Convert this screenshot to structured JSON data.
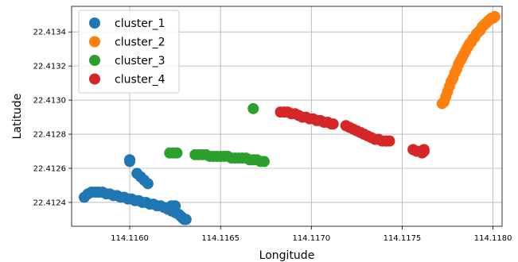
{
  "chart_data": {
    "type": "scatter",
    "title": "",
    "xlabel": "Longitude",
    "ylabel": "Latitude",
    "xlim": [
      114.11568,
      114.11805
    ],
    "ylim": [
      22.41226,
      22.41355
    ],
    "xticks": [
      "114.1160",
      "114.1165",
      "114.1170",
      "114.1175",
      "114.1180"
    ],
    "yticks": [
      "22.4124",
      "22.4126",
      "22.4128",
      "22.4130",
      "22.4132",
      "22.4134"
    ],
    "grid": true,
    "legend_position": "upper-left",
    "series": [
      {
        "name": "cluster_1",
        "color": "#1f77b4",
        "points": [
          [
            114.11575,
            22.41243
          ],
          [
            114.11577,
            22.41245
          ],
          [
            114.11579,
            22.41246
          ],
          [
            114.11581,
            22.41246
          ],
          [
            114.11583,
            22.41246
          ],
          [
            114.11585,
            22.41246
          ],
          [
            114.11587,
            22.41245
          ],
          [
            114.11589,
            22.41245
          ],
          [
            114.11591,
            22.41244
          ],
          [
            114.11593,
            22.41244
          ],
          [
            114.11595,
            22.41243
          ],
          [
            114.11597,
            22.41243
          ],
          [
            114.11599,
            22.41242
          ],
          [
            114.11601,
            22.41242
          ],
          [
            114.11603,
            22.41241
          ],
          [
            114.11605,
            22.41241
          ],
          [
            114.11607,
            22.4124
          ],
          [
            114.11609,
            22.4124
          ],
          [
            114.11611,
            22.41239
          ],
          [
            114.11613,
            22.41239
          ],
          [
            114.11615,
            22.41238
          ],
          [
            114.11617,
            22.41238
          ],
          [
            114.11619,
            22.41237
          ],
          [
            114.11621,
            22.41236
          ],
          [
            114.11623,
            22.41235
          ],
          [
            114.11625,
            22.41234
          ],
          [
            114.11627,
            22.41233
          ],
          [
            114.11628,
            22.41232
          ],
          [
            114.11629,
            22.41231
          ],
          [
            114.1163,
            22.4123
          ],
          [
            114.11631,
            22.4123
          ],
          [
            114.11625,
            22.41238
          ],
          [
            114.11623,
            22.41238
          ],
          [
            114.116,
            22.41265
          ],
          [
            114.116,
            22.41264
          ],
          [
            114.11604,
            22.41257
          ],
          [
            114.11606,
            22.41255
          ],
          [
            114.11608,
            22.41253
          ],
          [
            114.1161,
            22.41251
          ]
        ]
      },
      {
        "name": "cluster_2",
        "color": "#ff7f0e",
        "points": [
          [
            114.11772,
            22.41298
          ],
          [
            114.11773,
            22.41299
          ],
          [
            114.11774,
            22.41302
          ],
          [
            114.11775,
            22.41305
          ],
          [
            114.11776,
            22.41308
          ],
          [
            114.11777,
            22.41311
          ],
          [
            114.11778,
            22.41313
          ],
          [
            114.11779,
            22.41316
          ],
          [
            114.1178,
            22.41318
          ],
          [
            114.11781,
            22.41321
          ],
          [
            114.11782,
            22.41323
          ],
          [
            114.11783,
            22.41325
          ],
          [
            114.11784,
            22.41327
          ],
          [
            114.11785,
            22.41329
          ],
          [
            114.11786,
            22.41331
          ],
          [
            114.11787,
            22.41333
          ],
          [
            114.11788,
            22.41334
          ],
          [
            114.11789,
            22.41336
          ],
          [
            114.1179,
            22.41337
          ],
          [
            114.11791,
            22.41339
          ],
          [
            114.11792,
            22.4134
          ],
          [
            114.11793,
            22.41341
          ],
          [
            114.11794,
            22.41343
          ],
          [
            114.11795,
            22.41344
          ],
          [
            114.11796,
            22.41345
          ],
          [
            114.11797,
            22.41346
          ],
          [
            114.11798,
            22.41347
          ],
          [
            114.11799,
            22.41348
          ],
          [
            114.118,
            22.41348
          ],
          [
            114.11801,
            22.41349
          ]
        ]
      },
      {
        "name": "cluster_3",
        "color": "#2ca02c",
        "points": [
          [
            114.11622,
            22.41269
          ],
          [
            114.11624,
            22.41269
          ],
          [
            114.11626,
            22.41269
          ],
          [
            114.11636,
            22.41268
          ],
          [
            114.11638,
            22.41268
          ],
          [
            114.1164,
            22.41268
          ],
          [
            114.11642,
            22.41268
          ],
          [
            114.11644,
            22.41267
          ],
          [
            114.11646,
            22.41267
          ],
          [
            114.11648,
            22.41267
          ],
          [
            114.1165,
            22.41267
          ],
          [
            114.11652,
            22.41267
          ],
          [
            114.11654,
            22.41267
          ],
          [
            114.11656,
            22.41266
          ],
          [
            114.11658,
            22.41266
          ],
          [
            114.1166,
            22.41266
          ],
          [
            114.11662,
            22.41266
          ],
          [
            114.11664,
            22.41266
          ],
          [
            114.11666,
            22.41265
          ],
          [
            114.11668,
            22.41265
          ],
          [
            114.1167,
            22.41265
          ],
          [
            114.11672,
            22.41264
          ],
          [
            114.11674,
            22.41264
          ],
          [
            114.11668,
            22.41295
          ]
        ]
      },
      {
        "name": "cluster_4",
        "color": "#d62728",
        "points": [
          [
            114.11683,
            22.41293
          ],
          [
            114.11685,
            22.41293
          ],
          [
            114.11687,
            22.41293
          ],
          [
            114.11689,
            22.41292
          ],
          [
            114.11691,
            22.41292
          ],
          [
            114.11693,
            22.41291
          ],
          [
            114.11695,
            22.4129
          ],
          [
            114.11697,
            22.4129
          ],
          [
            114.11699,
            22.41289
          ],
          [
            114.11701,
            22.41289
          ],
          [
            114.11703,
            22.41288
          ],
          [
            114.11705,
            22.41288
          ],
          [
            114.11707,
            22.41287
          ],
          [
            114.11709,
            22.41287
          ],
          [
            114.11711,
            22.41286
          ],
          [
            114.11712,
            22.41286
          ],
          [
            114.11719,
            22.41285
          ],
          [
            114.11721,
            22.41284
          ],
          [
            114.11723,
            22.41283
          ],
          [
            114.11725,
            22.41282
          ],
          [
            114.11727,
            22.41281
          ],
          [
            114.11729,
            22.4128
          ],
          [
            114.11731,
            22.41279
          ],
          [
            114.11733,
            22.41278
          ],
          [
            114.11735,
            22.41277
          ],
          [
            114.11737,
            22.41277
          ],
          [
            114.11739,
            22.41276
          ],
          [
            114.11741,
            22.41276
          ],
          [
            114.11743,
            22.41276
          ],
          [
            114.11756,
            22.41271
          ],
          [
            114.11758,
            22.4127
          ],
          [
            114.1176,
            22.4127
          ],
          [
            114.11762,
            22.4127
          ],
          [
            114.11762,
            22.41271
          ],
          [
            114.11761,
            22.41269
          ]
        ]
      }
    ]
  }
}
